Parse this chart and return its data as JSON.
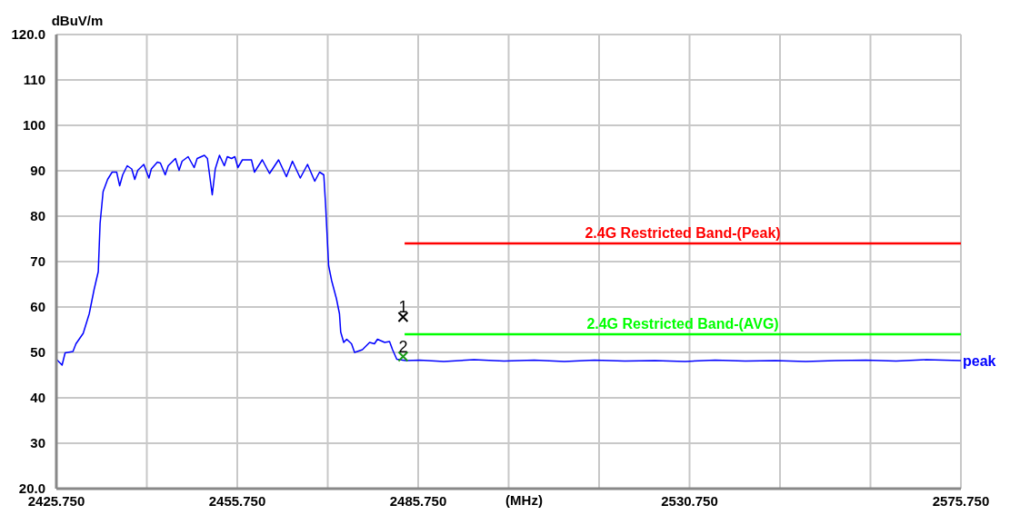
{
  "chart_data": {
    "type": "line",
    "ylabel": "dBuV/m",
    "xlabel": "(MHz)",
    "xlim": [
      2425.75,
      2575.75
    ],
    "xticks": [
      {
        "value": 2425.75,
        "label": "2425.750"
      },
      {
        "value": 2440.75,
        "label": null
      },
      {
        "value": 2455.75,
        "label": "2455.750"
      },
      {
        "value": 2470.75,
        "label": null
      },
      {
        "value": 2485.75,
        "label": "2485.750"
      },
      {
        "value": 2500.75,
        "label": null
      },
      {
        "value": 2515.75,
        "label": null
      },
      {
        "value": 2530.75,
        "label": "2530.750"
      },
      {
        "value": 2545.75,
        "label": null
      },
      {
        "value": 2560.75,
        "label": null
      },
      {
        "value": 2575.75,
        "label": "2575.750"
      }
    ],
    "ylim": [
      20,
      120
    ],
    "yticks": [
      {
        "value": 20,
        "label": "20.0"
      },
      30,
      40,
      50,
      60,
      70,
      80,
      90,
      100,
      110,
      {
        "value": 120,
        "label": "120.0"
      }
    ],
    "grid": true,
    "line_style": "solid",
    "series": [
      {
        "name": "peak",
        "color": "#0000ff",
        "x": [
          2425.75,
          2426.7,
          2427.2,
          2428.5,
          2429.0,
          2430.2,
          2431.2,
          2432.0,
          2432.7,
          2433.0,
          2433.5,
          2434.25,
          2435.0,
          2435.75,
          2436.25,
          2436.75,
          2437.5,
          2438.25,
          2438.75,
          2439.25,
          2440.25,
          2441.1,
          2441.5,
          2442.5,
          2443.0,
          2443.8,
          2444.3,
          2445.5,
          2446.1,
          2446.6,
          2447.6,
          2448.6,
          2449.1,
          2450.3,
          2450.8,
          2451.6,
          2452.1,
          2452.8,
          2453.6,
          2454.1,
          2454.8,
          2455.35,
          2455.85,
          2456.6,
          2458.1,
          2458.6,
          2459.9,
          2461.1,
          2462.6,
          2463.9,
          2464.9,
          2466.2,
          2467.4,
          2468.6,
          2469.4,
          2470.1,
          2470.4,
          2470.9,
          2471.4,
          2472.2,
          2472.7,
          2472.9,
          2473.4,
          2473.9,
          2474.7,
          2475.2,
          2476.5,
          2477.7,
          2478.5,
          2479.0,
          2480.2,
          2481.0,
          2481.5,
          2482.2,
          2483.7,
          2486.0,
          2490.0,
          2495.0,
          2500.0,
          2505.0,
          2510.0,
          2515.0,
          2520.0,
          2525.0,
          2530.0,
          2535.0,
          2540.0,
          2545.0,
          2550.0,
          2555.0,
          2560.0,
          2565.0,
          2570.0,
          2575.75
        ],
        "values": [
          48.5,
          47.2,
          49.9,
          50.2,
          51.9,
          54.2,
          58.5,
          63.8,
          67.8,
          78.4,
          85.4,
          88.1,
          89.7,
          89.7,
          86.7,
          89.1,
          91.1,
          90.4,
          88.1,
          90.1,
          91.4,
          88.4,
          90.4,
          91.9,
          91.7,
          89.1,
          91.1,
          92.7,
          90.1,
          92.1,
          93.1,
          90.7,
          92.7,
          93.4,
          92.7,
          84.7,
          90.4,
          93.4,
          91.1,
          93.1,
          92.7,
          93.1,
          90.7,
          92.4,
          92.4,
          89.7,
          92.4,
          89.4,
          92.4,
          88.7,
          92.1,
          88.4,
          91.4,
          87.7,
          89.7,
          89.1,
          82.4,
          69.1,
          65.8,
          61.8,
          58.5,
          54.5,
          52.2,
          52.9,
          51.9,
          50.0,
          50.6,
          52.2,
          51.9,
          52.9,
          52.2,
          52.4,
          50.6,
          48.5,
          48.2,
          48.3,
          48.0,
          48.4,
          48.1,
          48.3,
          48.0,
          48.3,
          48.1,
          48.2,
          48.0,
          48.3,
          48.1,
          48.2,
          48.0,
          48.2,
          48.3,
          48.1,
          48.4,
          48.2
        ]
      },
      {
        "name": "2.4G Restricted Band-(Peak)",
        "color": "#ff0000",
        "x": [
          2483.5,
          2575.75
        ],
        "values": [
          74,
          74
        ]
      },
      {
        "name": "2.4G Restricted Band-(AVG)",
        "color": "#00ff00",
        "x": [
          2483.5,
          2575.75
        ],
        "values": [
          54,
          54
        ]
      },
      {
        "type": "scatter",
        "marker": "cross",
        "x": [
          2483.25,
          2483.25
        ],
        "values": [
          57.8,
          49.1
        ],
        "colors": [
          "#000000",
          "#1a9a1a"
        ]
      }
    ],
    "annotations": [
      {
        "text": "1",
        "x": 2483.25,
        "y": 57.8
      },
      {
        "text": "2",
        "x": 2483.25,
        "y": 49.1
      }
    ]
  }
}
